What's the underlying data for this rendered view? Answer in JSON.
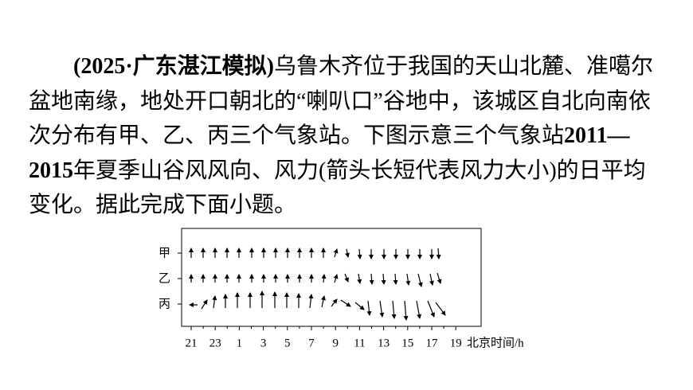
{
  "question": {
    "source": "(2025·广东湛江模拟)",
    "text_1": "乌鲁木齐位于我国的天山北麓、准噶尔盆地南缘，地处开口朝北的“喇叭口”谷地中，该城区自北向南依次分布有甲、乙、丙三个气象站。下图示意三个气象站",
    "years": "2011—2015",
    "text_2": "年夏季山谷风风向、风力(箭头长短代表风力大小)的日平均变化。据此完成下面小题。"
  },
  "figure": {
    "rows": [
      "甲",
      "乙",
      "丙"
    ],
    "x_ticks": [
      "21",
      "23",
      "1",
      "3",
      "5",
      "7",
      "9",
      "11",
      "13",
      "15",
      "17",
      "19"
    ],
    "x_label": "北京时间/h"
  }
}
